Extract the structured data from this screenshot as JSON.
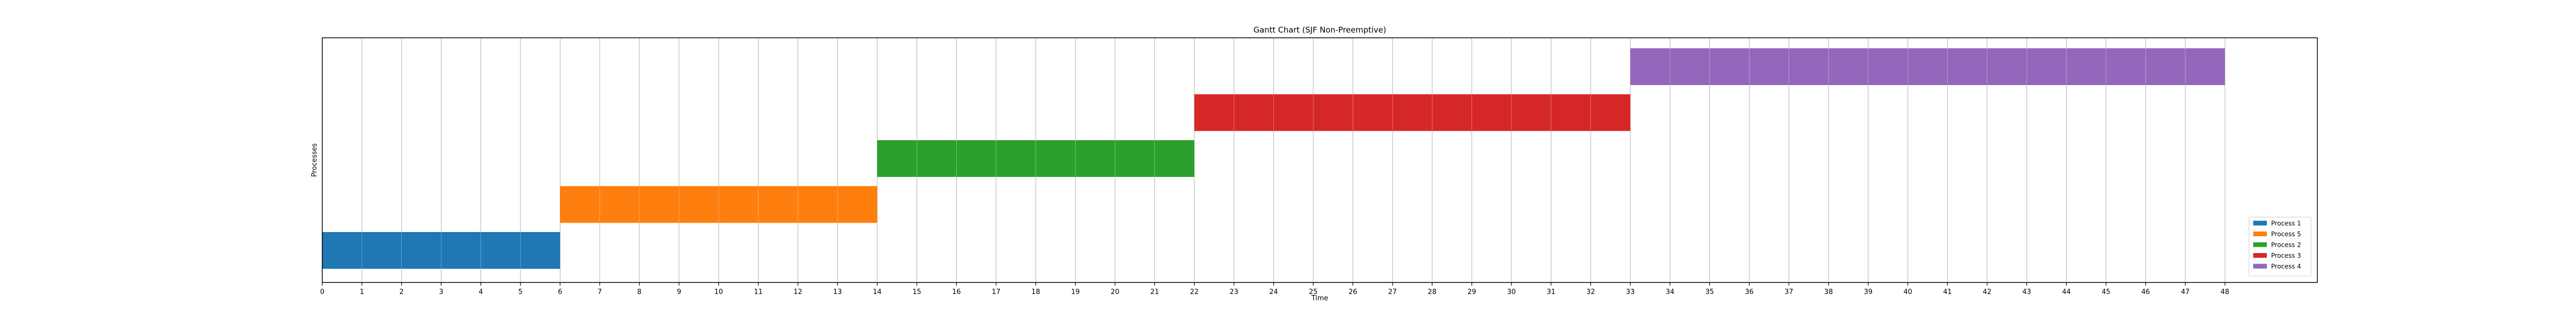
{
  "chart_data": {
    "type": "gantt",
    "title": "Gantt Chart (SJF Non-Preemptive)",
    "xlabel": "Time",
    "ylabel": "Processes",
    "xlim": [
      0,
      50
    ],
    "xticks": [
      0,
      1,
      2,
      3,
      4,
      5,
      6,
      7,
      8,
      9,
      10,
      11,
      12,
      13,
      14,
      15,
      16,
      17,
      18,
      19,
      20,
      21,
      22,
      23,
      24,
      25,
      26,
      27,
      28,
      29,
      30,
      31,
      32,
      33,
      34,
      35,
      36,
      37,
      38,
      39,
      40,
      41,
      42,
      43,
      44,
      45,
      46,
      47,
      48
    ],
    "grid": "vertical",
    "legend_placement": "lower-right",
    "series": [
      {
        "name": "Process 1",
        "start": 0,
        "end": 6,
        "row": 0,
        "color": "#1f77b4"
      },
      {
        "name": "Process 5",
        "start": 6,
        "end": 14,
        "row": 1,
        "color": "#ff7f0e"
      },
      {
        "name": "Process 2",
        "start": 14,
        "end": 22,
        "row": 2,
        "color": "#2ca02c"
      },
      {
        "name": "Process 3",
        "start": 22,
        "end": 33,
        "row": 3,
        "color": "#d62728"
      },
      {
        "name": "Process 4",
        "start": 33,
        "end": 48,
        "row": 4,
        "color": "#9467bd"
      }
    ]
  }
}
